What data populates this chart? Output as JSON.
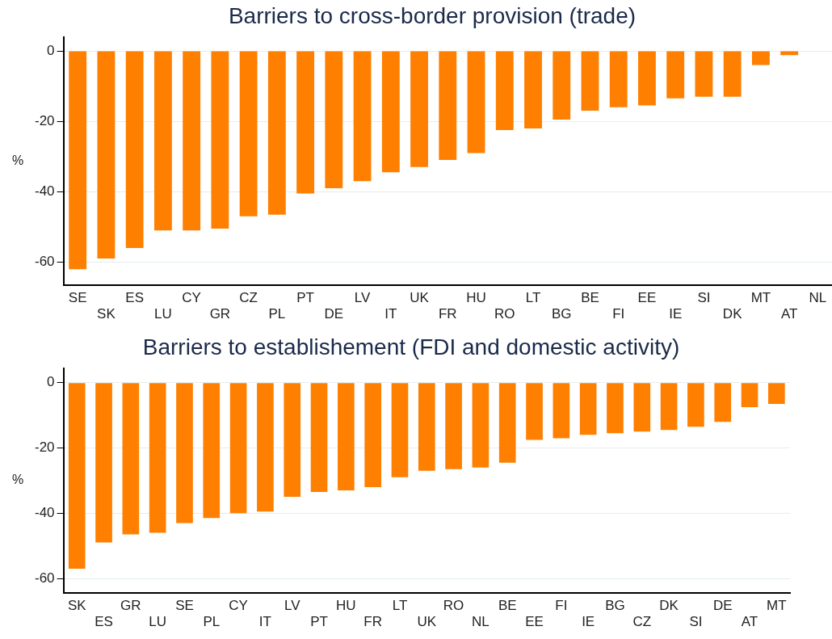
{
  "chart_data": [
    {
      "type": "bar",
      "title": "Barriers to cross-border provision (trade)",
      "ylabel": "%",
      "categories": [
        "SE",
        "SK",
        "ES",
        "LU",
        "CY",
        "GR",
        "CZ",
        "PL",
        "PT",
        "DE",
        "LV",
        "IT",
        "UK",
        "FR",
        "HU",
        "RO",
        "LT",
        "BG",
        "BE",
        "FI",
        "EE",
        "IE",
        "SI",
        "DK",
        "MT",
        "AT",
        "NL"
      ],
      "series": [
        {
          "color": "#ff7f00",
          "values": [
            -62,
            -59,
            -56,
            -51,
            -51,
            -50.5,
            -47,
            -46.5,
            -40.5,
            -39,
            -37,
            -34.5,
            -33,
            -31,
            -29,
            -22.5,
            -22,
            -19.5,
            -17,
            -16,
            -15.5,
            -13.5,
            -13,
            -13,
            -4,
            -1.2,
            0
          ]
        }
      ],
      "ylim": [
        -66.6,
        4
      ],
      "yticks": [
        0,
        -20,
        -40,
        -60
      ],
      "grid": "y",
      "legend": false
    },
    {
      "type": "bar",
      "title": "Barriers to establishement (FDI and domestic activity)",
      "ylabel": "%",
      "categories": [
        "SK",
        "ES",
        "GR",
        "LU",
        "SE",
        "PL",
        "CY",
        "IT",
        "LV",
        "PT",
        "HU",
        "FR",
        "LT",
        "UK",
        "RO",
        "NL",
        "BE",
        "EE",
        "FI",
        "IE",
        "BG",
        "CZ",
        "DK",
        "SI",
        "DE",
        "AT",
        "MT"
      ],
      "series": [
        {
          "color": "#ff7f00",
          "values": [
            -57,
            -49,
            -46.5,
            -46,
            -43,
            -41.5,
            -40,
            -39.5,
            -35,
            -33.5,
            -33,
            -32,
            -29,
            -27,
            -26.5,
            -26,
            -24.5,
            -17.5,
            -17,
            -16,
            -15.5,
            -15,
            -14.5,
            -13.5,
            -12,
            -7.5,
            -6.5
          ]
        }
      ],
      "ylim": [
        -64.5,
        4.5
      ],
      "yticks": [
        0,
        -20,
        -40,
        -60
      ],
      "grid": "y",
      "legend": false
    }
  ]
}
